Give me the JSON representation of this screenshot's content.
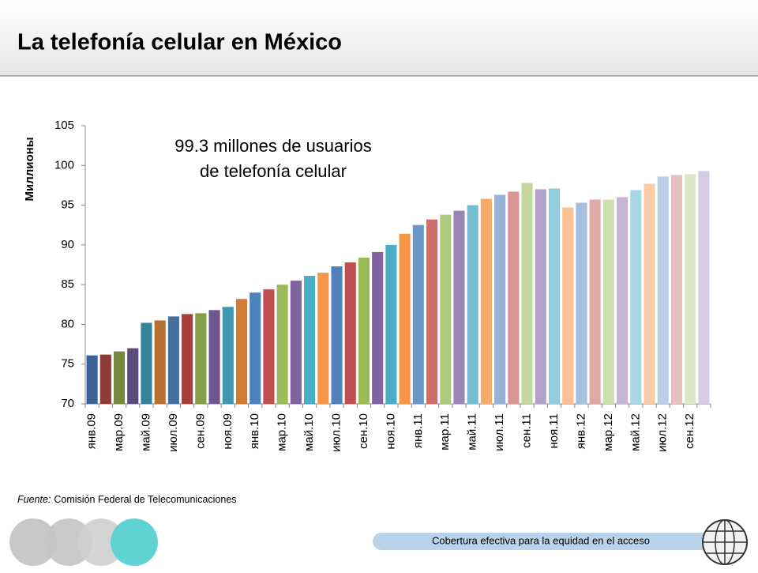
{
  "title": "La telefonía celular en México",
  "chart_data": {
    "type": "bar",
    "ylabel": "Миллионы",
    "annotation": [
      "99.3 millones de usuarios",
      "de telefonía celular"
    ],
    "categories": [
      "янв.09",
      null,
      "мар.09",
      null,
      "май.09",
      null,
      "июл.09",
      null,
      "сен.09",
      null,
      "ноя.09",
      null,
      "янв.10",
      null,
      "мар.10",
      null,
      "май.10",
      null,
      "июл.10",
      null,
      "сен.10",
      null,
      "ноя.10",
      null,
      "янв.11",
      null,
      "мар.11",
      null,
      "май.11",
      null,
      "июл.11",
      null,
      "сен.11",
      null,
      "ноя.11",
      null,
      "янв.12",
      null,
      "мар.12",
      null,
      "май.12",
      null,
      "июл.12",
      null,
      "сен.12",
      null
    ],
    "values": [
      76.1,
      76.2,
      76.6,
      77.0,
      80.2,
      80.5,
      81.0,
      81.3,
      81.4,
      81.8,
      82.2,
      83.2,
      84.0,
      84.4,
      85.0,
      85.5,
      86.1,
      86.5,
      87.3,
      87.8,
      88.4,
      89.1,
      90.0,
      91.4,
      92.5,
      93.2,
      93.8,
      94.3,
      95.0,
      95.8,
      96.3,
      96.7,
      97.8,
      97.0,
      97.1,
      94.7,
      95.3,
      95.7,
      95.7,
      96.0,
      96.9,
      97.7,
      98.6,
      98.8,
      98.9,
      99.3
    ],
    "colors": [
      "#3b6396",
      "#8e3a38",
      "#72893f",
      "#5d4a7a",
      "#33849a",
      "#b8702f",
      "#44709f",
      "#a5403d",
      "#849e4a",
      "#6e578f",
      "#3d98b0",
      "#d07c37",
      "#4f81bd",
      "#c0504d",
      "#9bbb59",
      "#8064a2",
      "#4bacc6",
      "#f79646",
      "#4f81bd",
      "#c0504d",
      "#9bbb59",
      "#8064a2",
      "#4bacc6",
      "#f79646",
      "#6d96c9",
      "#cd6e6b",
      "#aecb7d",
      "#9a85b6",
      "#72bfd3",
      "#f9ab6b",
      "#95b3d7",
      "#d99694",
      "#c3d69b",
      "#b3a2c7",
      "#93cddd",
      "#fac090",
      "#a7bfde",
      "#e0a9a7",
      "#cfdeaf",
      "#c3b5d3",
      "#a9d8e5",
      "#fbcba5",
      "#bccfe7",
      "#e8c0bf",
      "#dce7c7",
      "#d5cbe2"
    ],
    "ylim": [
      70,
      105
    ],
    "yticks": [
      70,
      75,
      80,
      85,
      90,
      95,
      100,
      105
    ]
  },
  "source": {
    "label": "Fuente:",
    "text": "Comisión Federal de Telecomunicaciones"
  },
  "footer": "Cobertura efectiva para la equidad en el acceso"
}
